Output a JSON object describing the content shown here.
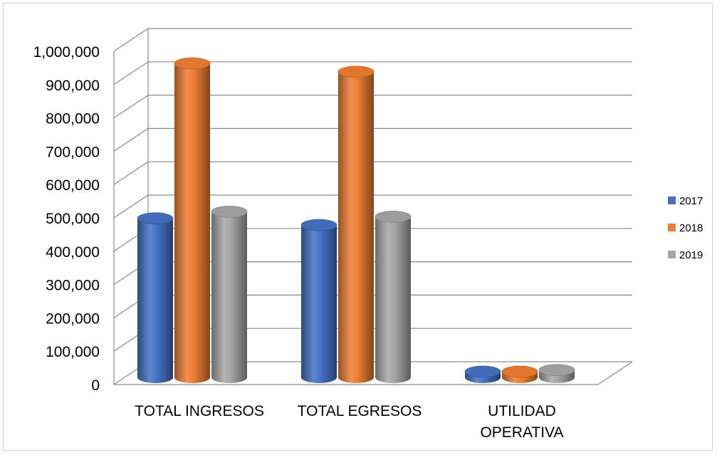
{
  "chart_data": {
    "type": "bar",
    "style": "3d-clustered-cylinder",
    "categories": [
      [
        "TOTAL INGRESOS"
      ],
      [
        "TOTAL EGRESOS"
      ],
      [
        "UTILIDAD",
        "OPERATIVA"
      ]
    ],
    "series": [
      {
        "name": "2017",
        "color": "#4472C4",
        "values": [
          490000,
          470000,
          30000
        ]
      },
      {
        "name": "2018",
        "color": "#ED7D31",
        "values": [
          955000,
          930000,
          30000
        ]
      },
      {
        "name": "2019",
        "color": "#A5A5A5",
        "values": [
          510000,
          495000,
          35000
        ]
      }
    ],
    "yticks": [
      "0",
      "100,000",
      "200,000",
      "300,000",
      "400,000",
      "500,000",
      "600,000",
      "700,000",
      "800,000",
      "900,000",
      "1,000,000"
    ],
    "ylim": [
      0,
      1000000
    ],
    "grid": true,
    "legend": "right"
  }
}
